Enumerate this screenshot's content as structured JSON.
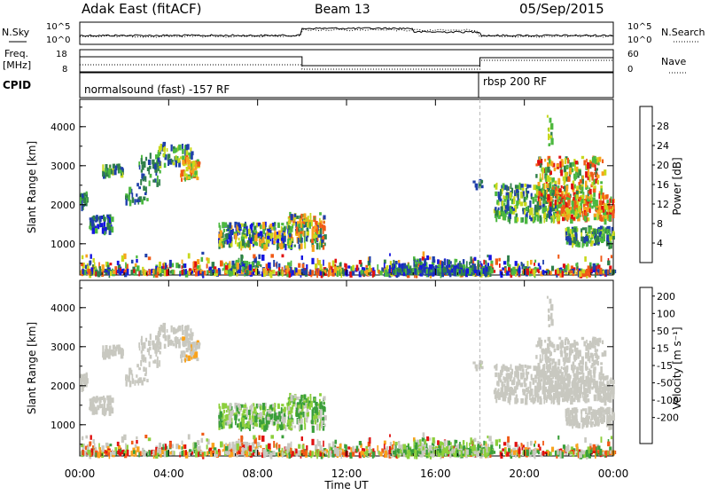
{
  "header": {
    "station": "Adak East (fitACF)",
    "beam": "Beam 13",
    "date": "05/Sep/2015"
  },
  "strip_labels": {
    "nsky": "N.Sky",
    "freq_line1": "Freq.",
    "freq_line2": "[MHz]",
    "cpid": "CPID",
    "nsearch": "N.Search",
    "nave": "Nave"
  },
  "strip_ticks": {
    "noise_top": "10^5",
    "noise_bottom": "10^0",
    "freq_top": "18",
    "freq_bottom": "8",
    "nave_top": "60",
    "nave_bottom": "0"
  },
  "cpid_labels": [
    "normalsound (fast) -157 RF",
    "rbsp 200 RF"
  ],
  "panels": {
    "ylabel": "Slant Range [km]",
    "xlabel": "Time UT",
    "power_bar_label": "Power [dB]",
    "velocity_bar_label": "Velocity [m s⁻¹]"
  },
  "colors": {
    "power_scale": [
      "#1515e0",
      "#1f3faa",
      "#2f7f4a",
      "#4cb840",
      "#c8d81c",
      "#f8a21c",
      "#f05a16",
      "#e01010"
    ],
    "velocity_scale": [
      "#e01010",
      "#f05a16",
      "#f8a21c",
      "#c8c8c0",
      "#c8c8c0",
      "#8ccf3c",
      "#3a9f3a",
      "#2a5ab0",
      "#1515a0"
    ]
  },
  "chart_data": [
    {
      "type": "heatmap",
      "title": "Power",
      "xlabel": "Time UT",
      "ylabel": "Slant Range [km]",
      "x_ticks": [
        "00:00",
        "04:00",
        "08:00",
        "12:00",
        "16:00",
        "20:00",
        "00:00"
      ],
      "y_ticks": [
        "1000",
        "2000",
        "3000",
        "4000"
      ],
      "ylim": [
        200,
        4700
      ],
      "colorbar_label": "Power [dB]",
      "colorbar_ticks": [
        "4",
        "8",
        "12",
        "16",
        "20",
        "24",
        "28"
      ],
      "clim": [
        0,
        32
      ],
      "cpid_change_hour": 18
    },
    {
      "type": "heatmap",
      "title": "Velocity",
      "xlabel": "Time UT",
      "ylabel": "Slant Range [km]",
      "x_ticks": [
        "00:00",
        "04:00",
        "08:00",
        "12:00",
        "16:00",
        "20:00",
        "00:00"
      ],
      "y_ticks": [
        "1000",
        "2000",
        "3000",
        "4000"
      ],
      "ylim": [
        200,
        4700
      ],
      "colorbar_label": "Velocity [m s⁻¹]",
      "colorbar_ticks": [
        "200",
        "100",
        "50",
        "15",
        "-15",
        "-50",
        "-100",
        "-200"
      ],
      "clim": [
        -250,
        250
      ],
      "cpid_change_hour": 18
    }
  ]
}
